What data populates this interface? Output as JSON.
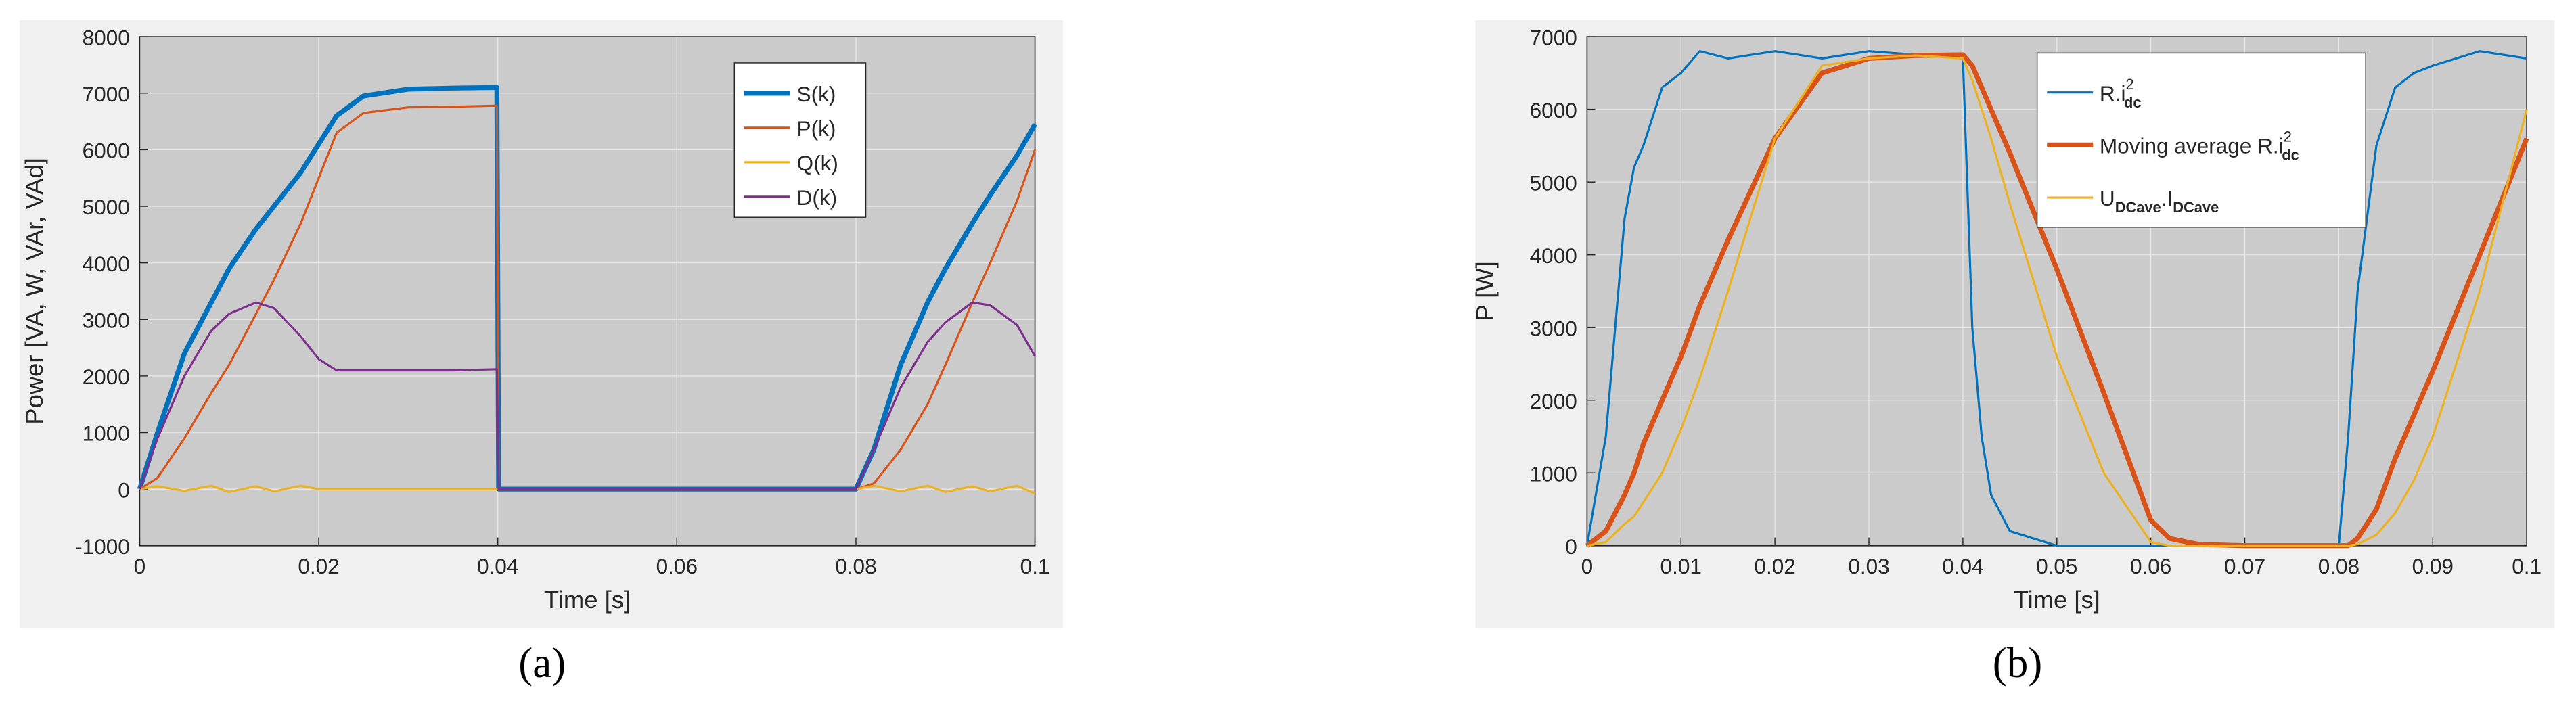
{
  "chart_data": [
    {
      "type": "line",
      "caption": "(a)",
      "xlabel": "Time [s]",
      "ylabel": "Power [VA, W, VAr, VAd]",
      "x": [
        0,
        0.002,
        0.005,
        0.008,
        0.01,
        0.013,
        0.015,
        0.018,
        0.02,
        0.022,
        0.025,
        0.03,
        0.035,
        0.0399,
        0.0401,
        0.05,
        0.06,
        0.07,
        0.08,
        0.082,
        0.085,
        0.088,
        0.09,
        0.093,
        0.095,
        0.098,
        0.1
      ],
      "xlim": [
        0,
        0.1
      ],
      "xticks": [
        0,
        0.02,
        0.04,
        0.06,
        0.08,
        0.1
      ],
      "ylim": [
        -1000,
        8000
      ],
      "yticks": [
        -1000,
        0,
        1000,
        2000,
        3000,
        4000,
        5000,
        6000,
        7000,
        8000
      ],
      "grid": true,
      "series": [
        {
          "name_parts": [
            {
              "text": "S(k)"
            }
          ],
          "color": "#0072BD",
          "line_width": 3,
          "values": [
            0,
            1000,
            2400,
            3300,
            3900,
            4600,
            5000,
            5600,
            6100,
            6600,
            6950,
            7070,
            7090,
            7100,
            0,
            0,
            0,
            0,
            0,
            700,
            2200,
            3300,
            3900,
            4700,
            5200,
            5900,
            6450
          ]
        },
        {
          "name_parts": [
            {
              "text": "P(k)"
            }
          ],
          "color": "#D95319",
          "line_width": 1.3,
          "values": [
            0,
            200,
            900,
            1700,
            2200,
            3100,
            3700,
            4700,
            5500,
            6300,
            6650,
            6750,
            6760,
            6780,
            0,
            0,
            0,
            0,
            0,
            100,
            700,
            1500,
            2200,
            3300,
            4000,
            5100,
            6000
          ]
        },
        {
          "name_parts": [
            {
              "text": "Q(k)"
            }
          ],
          "color": "#EDB120",
          "line_width": 1.3,
          "values": [
            0,
            50,
            -30,
            60,
            -50,
            50,
            -40,
            60,
            0,
            0,
            0,
            0,
            0,
            0,
            0,
            0,
            0,
            0,
            0,
            60,
            -40,
            60,
            -50,
            50,
            -40,
            60,
            -80
          ]
        },
        {
          "name_parts": [
            {
              "text": "D(k)"
            }
          ],
          "color": "#7E2F8E",
          "line_width": 1.3,
          "values": [
            0,
            900,
            2000,
            2800,
            3100,
            3300,
            3200,
            2700,
            2300,
            2100,
            2100,
            2100,
            2100,
            2120,
            0,
            0,
            0,
            0,
            0,
            700,
            1800,
            2600,
            2950,
            3300,
            3250,
            2900,
            2350
          ]
        }
      ]
    },
    {
      "type": "line",
      "caption": "(b)",
      "xlabel": "Time [s]",
      "ylabel": "P [W]",
      "x": [
        0,
        0.002,
        0.004,
        0.005,
        0.006,
        0.008,
        0.01,
        0.012,
        0.015,
        0.02,
        0.025,
        0.03,
        0.035,
        0.04,
        0.041,
        0.042,
        0.043,
        0.045,
        0.05,
        0.055,
        0.06,
        0.062,
        0.065,
        0.07,
        0.08,
        0.081,
        0.082,
        0.084,
        0.086,
        0.088,
        0.09,
        0.095,
        0.1
      ],
      "xlim": [
        0,
        0.1
      ],
      "xticks": [
        0,
        0.01,
        0.02,
        0.03,
        0.04,
        0.05,
        0.06,
        0.07,
        0.08,
        0.09,
        0.1
      ],
      "ylim": [
        0,
        7000
      ],
      "yticks": [
        0,
        1000,
        2000,
        3000,
        4000,
        5000,
        6000,
        7000
      ],
      "grid": true,
      "series": [
        {
          "name_parts": [
            {
              "text": "R.i"
            },
            {
              "sup": "2"
            },
            {
              "sub": "dc"
            }
          ],
          "color": "#0072BD",
          "line_width": 1.3,
          "values": [
            0,
            1500,
            4500,
            5200,
            5500,
            6300,
            6500,
            6800,
            6700,
            6800,
            6700,
            6800,
            6750,
            6700,
            3000,
            1500,
            700,
            200,
            0,
            0,
            0,
            0,
            0,
            0,
            0,
            1500,
            3500,
            5500,
            6300,
            6500,
            6600,
            6800,
            6700
          ]
        },
        {
          "name_parts": [
            {
              "text": "Moving average R.i"
            },
            {
              "sup": "2"
            },
            {
              "sub": "dc"
            }
          ],
          "color": "#D95319",
          "line_width": 3,
          "values": [
            0,
            200,
            700,
            1000,
            1400,
            2000,
            2600,
            3300,
            4200,
            5600,
            6500,
            6700,
            6740,
            6750,
            6600,
            6300,
            6000,
            5400,
            3800,
            2100,
            350,
            100,
            20,
            0,
            0,
            0,
            100,
            500,
            1200,
            1800,
            2400,
            4000,
            5600
          ]
        },
        {
          "name_parts": [
            {
              "text": "U"
            },
            {
              "sub": "DCave"
            },
            {
              "text": ".I"
            },
            {
              "sub": "DCave"
            }
          ],
          "color": "#EDB120",
          "line_width": 1.3,
          "values": [
            0,
            50,
            300,
            400,
            600,
            1000,
            1600,
            2300,
            3500,
            5600,
            6600,
            6700,
            6740,
            6700,
            6400,
            6000,
            5600,
            4700,
            2600,
            1000,
            50,
            0,
            0,
            0,
            0,
            0,
            20,
            150,
            450,
            900,
            1500,
            3500,
            6000
          ]
        }
      ]
    }
  ]
}
